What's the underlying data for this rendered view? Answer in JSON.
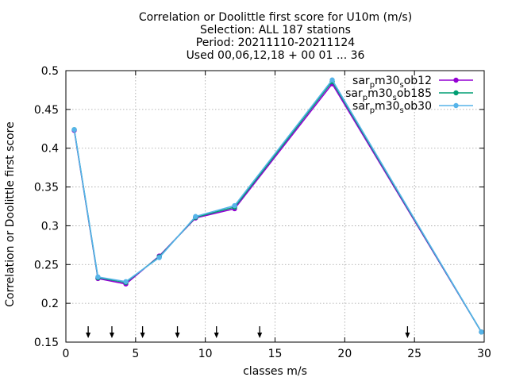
{
  "chart_data": {
    "type": "line",
    "title_lines": [
      "Correlation or Doolittle first score  for U10m (m/s)",
      "Selection: ALL     187 stations",
      "Period: 20211110-20211124",
      "Used 00,06,12,18 + 00 01 ... 36"
    ],
    "xlabel": "classes m/s",
    "ylabel": "Correlation or Doolittle first score",
    "xlim": [
      0,
      30
    ],
    "ylim": [
      0.15,
      0.5
    ],
    "xticks": [
      0,
      5,
      10,
      15,
      20,
      25,
      30
    ],
    "xtick_labels": [
      "0",
      "5",
      "10",
      "15",
      "20",
      "25",
      "30"
    ],
    "yticks": [
      0.15,
      0.2,
      0.25,
      0.3,
      0.35,
      0.4,
      0.45,
      0.5
    ],
    "ytick_labels": [
      "0.15",
      "0.2",
      "0.25",
      "0.3",
      "0.35",
      "0.4",
      "0.45",
      "0.5"
    ],
    "grid": true,
    "legend_position": "top-right",
    "x": [
      0.6,
      2.3,
      4.3,
      6.7,
      9.3,
      12.1,
      19.1,
      29.8
    ],
    "series": [
      {
        "name_parts": [
          "sar",
          "p",
          "m30",
          "s",
          "ob12"
        ],
        "color": "#9400d3",
        "values": [
          0.423,
          0.232,
          0.225,
          0.261,
          0.31,
          0.322,
          0.483,
          0.163
        ]
      },
      {
        "name_parts": [
          "sar",
          "p",
          "m30",
          "s",
          "ob185"
        ],
        "color": "#009e73",
        "values": [
          0.424,
          0.233,
          0.227,
          0.26,
          0.311,
          0.324,
          0.486,
          0.163
        ]
      },
      {
        "name_parts": [
          "sar",
          "p",
          "m30",
          "s",
          "ob30"
        ],
        "color": "#56b4e9",
        "values": [
          0.424,
          0.234,
          0.228,
          0.259,
          0.312,
          0.326,
          0.488,
          0.163
        ]
      }
    ],
    "arrow_markers_x": [
      1.6,
      3.3,
      5.5,
      8.0,
      10.8,
      13.9,
      24.5
    ]
  }
}
